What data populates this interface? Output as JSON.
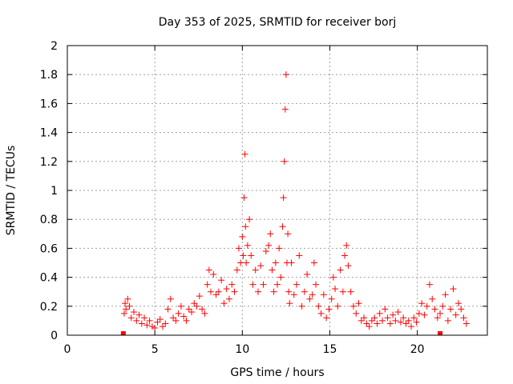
{
  "chart_data": {
    "type": "scatter",
    "title": "Day 353 of 2025, SRMTID for receiver borj",
    "xlabel": "GPS time / hours",
    "ylabel": "SRMTID / TECUs",
    "xlim": [
      0,
      24
    ],
    "ylim": [
      0,
      2
    ],
    "xticks": [
      0,
      5,
      10,
      15,
      20
    ],
    "yticks": [
      0,
      0.2,
      0.4,
      0.6,
      0.8,
      1,
      1.2,
      1.4,
      1.6,
      1.8,
      2
    ],
    "ytick_labels": [
      "0",
      "0.2",
      "0.4",
      "0.6",
      "0.8",
      "1",
      "1.2",
      "1.4",
      "1.6",
      "1.8",
      "2"
    ],
    "grid": true,
    "marker": "+",
    "color": "#ff0000",
    "series": [
      {
        "name": "SRMTID",
        "x": [
          3.25,
          3.3,
          3.35,
          3.45,
          3.55,
          3.65,
          3.8,
          3.95,
          4.1,
          4.25,
          4.4,
          4.55,
          4.7,
          4.85,
          5.0,
          5.15,
          5.3,
          5.45,
          5.6,
          5.75,
          5.9,
          6.05,
          6.2,
          6.35,
          6.5,
          6.65,
          6.8,
          6.95,
          7.1,
          7.25,
          7.4,
          7.55,
          7.7,
          7.85,
          8.0,
          8.1,
          8.2,
          8.35,
          8.5,
          8.65,
          8.8,
          8.95,
          9.1,
          9.25,
          9.4,
          9.55,
          9.7,
          9.8,
          9.9,
          10.0,
          10.05,
          10.1,
          10.15,
          10.18,
          10.22,
          10.3,
          10.4,
          10.5,
          10.6,
          10.75,
          10.9,
          11.05,
          11.2,
          11.35,
          11.5,
          11.6,
          11.7,
          11.8,
          11.9,
          12.0,
          12.1,
          12.2,
          12.3,
          12.35,
          12.4,
          12.45,
          12.5,
          12.55,
          12.6,
          12.65,
          12.7,
          12.8,
          12.95,
          13.1,
          13.25,
          13.4,
          13.55,
          13.7,
          13.85,
          14.0,
          14.1,
          14.2,
          14.35,
          14.5,
          14.65,
          14.8,
          14.95,
          15.1,
          15.2,
          15.3,
          15.45,
          15.6,
          15.75,
          15.85,
          15.95,
          16.05,
          16.2,
          16.35,
          16.5,
          16.65,
          16.8,
          16.95,
          17.1,
          17.25,
          17.4,
          17.55,
          17.7,
          17.85,
          18.0,
          18.15,
          18.3,
          18.45,
          18.6,
          18.75,
          18.9,
          19.05,
          19.2,
          19.35,
          19.5,
          19.65,
          19.8,
          19.95,
          20.1,
          20.25,
          20.4,
          20.55,
          20.7,
          20.85,
          21.0,
          21.15,
          21.3,
          21.45,
          21.6,
          21.75,
          21.9,
          22.05,
          22.2,
          22.35,
          22.5,
          22.65,
          22.8
        ],
        "y": [
          0.15,
          0.22,
          0.18,
          0.25,
          0.2,
          0.12,
          0.16,
          0.1,
          0.14,
          0.08,
          0.12,
          0.07,
          0.1,
          0.06,
          0.05,
          0.09,
          0.11,
          0.06,
          0.08,
          0.18,
          0.25,
          0.12,
          0.1,
          0.15,
          0.2,
          0.13,
          0.1,
          0.18,
          0.16,
          0.22,
          0.2,
          0.27,
          0.18,
          0.15,
          0.35,
          0.45,
          0.3,
          0.42,
          0.28,
          0.3,
          0.38,
          0.22,
          0.32,
          0.25,
          0.35,
          0.3,
          0.45,
          0.6,
          0.5,
          0.68,
          0.55,
          0.95,
          1.25,
          0.75,
          0.5,
          0.62,
          0.8,
          0.55,
          0.35,
          0.45,
          0.3,
          0.48,
          0.35,
          0.58,
          0.62,
          0.7,
          0.45,
          0.3,
          0.5,
          0.35,
          0.6,
          0.4,
          0.75,
          0.95,
          1.2,
          1.56,
          1.8,
          0.5,
          0.7,
          0.3,
          0.22,
          0.5,
          0.28,
          0.35,
          0.55,
          0.2,
          0.3,
          0.42,
          0.25,
          0.28,
          0.5,
          0.35,
          0.2,
          0.15,
          0.28,
          0.12,
          0.18,
          0.25,
          0.4,
          0.32,
          0.2,
          0.45,
          0.3,
          0.55,
          0.62,
          0.48,
          0.3,
          0.2,
          0.15,
          0.22,
          0.1,
          0.12,
          0.08,
          0.06,
          0.1,
          0.12,
          0.08,
          0.15,
          0.1,
          0.18,
          0.12,
          0.08,
          0.14,
          0.1,
          0.16,
          0.09,
          0.12,
          0.08,
          0.1,
          0.06,
          0.12,
          0.09,
          0.15,
          0.22,
          0.14,
          0.2,
          0.35,
          0.25,
          0.18,
          0.12,
          0.15,
          0.2,
          0.28,
          0.1,
          0.18,
          0.32,
          0.14,
          0.22,
          0.18,
          0.12,
          0.08
        ]
      }
    ],
    "zero_markers_x": [
      3.2,
      21.3
    ]
  }
}
